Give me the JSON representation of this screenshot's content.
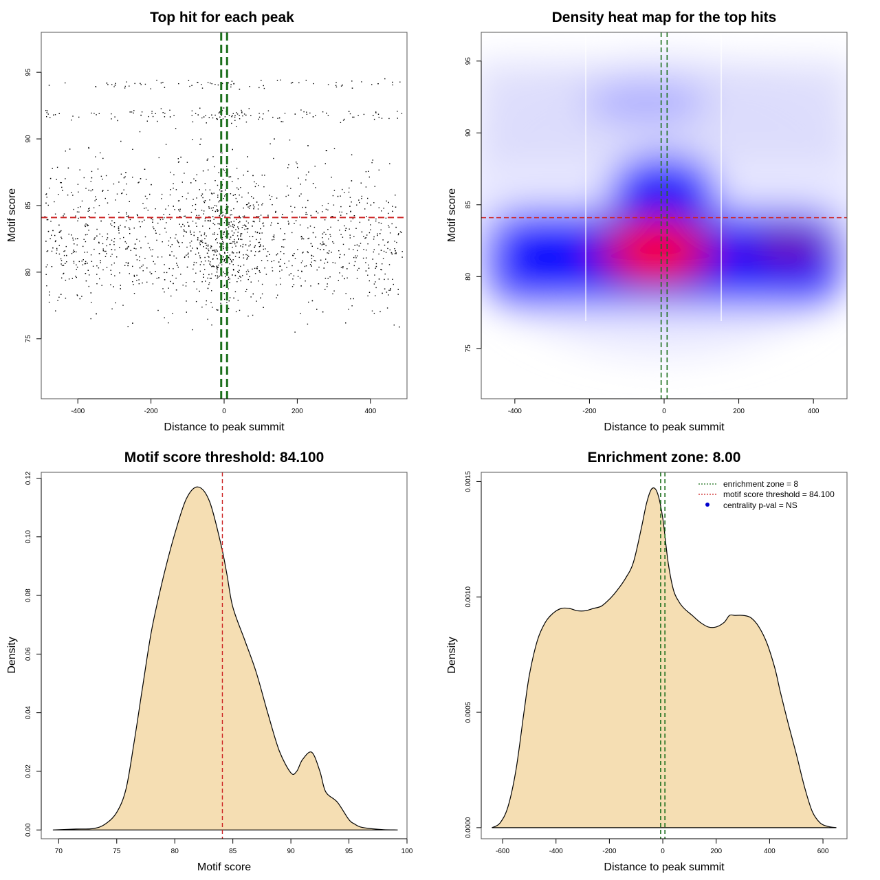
{
  "colors": {
    "threshold_red": "#cc2222",
    "zone_green": "#1a6e1a",
    "density_fill": "#f5deb3",
    "heat_low": "#ffffff",
    "heat_mid": "#0000ff",
    "heat_high": "#ff0000",
    "legend_dot": "#0000cc"
  },
  "chart_data": [
    {
      "type": "scatter",
      "title": "Top hit for each peak",
      "xlabel": "Distance to peak summit",
      "ylabel": "Motif score",
      "xlim": [
        -500,
        500
      ],
      "ylim": [
        70.5,
        98
      ],
      "xticks": [
        -400,
        -200,
        0,
        200,
        400
      ],
      "yticks": [
        75,
        80,
        85,
        90,
        95
      ],
      "hline": 84.1,
      "vlines": [
        -8,
        8
      ],
      "point_count": 2000,
      "points_description": "dense cloud between 76 and 90, sparse above 90 and below 76; x spread uniformly from -490 to 490"
    },
    {
      "type": "heatmap",
      "title": "Density heat map for the top hits",
      "xlabel": "Distance to peak summit",
      "ylabel": "Motif score",
      "xlim": [
        -490,
        490
      ],
      "ylim": [
        71.5,
        97
      ],
      "xticks": [
        -400,
        -200,
        0,
        200,
        400
      ],
      "yticks": [
        75,
        80,
        85,
        90,
        95
      ],
      "hline": 84.1,
      "vlines": [
        -8,
        8
      ],
      "peak": {
        "x": -20,
        "y": 82
      },
      "vertical_white_lines": [
        -210,
        153
      ]
    },
    {
      "type": "area",
      "title": "Motif score threshold: 84.100",
      "xlabel": "Motif score",
      "ylabel": "Density",
      "xlim": [
        68.5,
        100
      ],
      "ylim": [
        -0.003,
        0.122
      ],
      "xticks": [
        70,
        75,
        80,
        85,
        90,
        95,
        100
      ],
      "yticks": [
        "0.00",
        "0.02",
        "0.04",
        "0.06",
        "0.08",
        "0.10",
        "0.12"
      ],
      "vline": 84.1,
      "x": [
        69.5,
        71.5,
        73,
        74,
        75,
        75.8,
        76.5,
        77.2,
        78,
        79,
        80,
        81,
        82,
        83,
        84,
        84.5,
        85,
        86,
        87,
        88,
        89,
        90,
        90.5,
        91,
        91.8,
        92.5,
        93,
        94,
        95,
        95.5,
        96,
        97,
        98,
        99.2
      ],
      "y": [
        0.0,
        0.0003,
        0.0005,
        0.002,
        0.006,
        0.014,
        0.03,
        0.048,
        0.068,
        0.086,
        0.101,
        0.113,
        0.117,
        0.112,
        0.097,
        0.087,
        0.076,
        0.065,
        0.054,
        0.04,
        0.027,
        0.0195,
        0.02,
        0.024,
        0.0265,
        0.02,
        0.013,
        0.0095,
        0.0035,
        0.002,
        0.001,
        0.0004,
        0.0001,
        0.0
      ]
    },
    {
      "type": "area",
      "title": "Enrichment zone: 8.00",
      "xlabel": "Distance to peak summit",
      "ylabel": "Density",
      "xlim": [
        -680,
        690
      ],
      "ylim": [
        -4.8e-05,
        0.00154
      ],
      "xticks": [
        -600,
        -400,
        -200,
        0,
        200,
        400,
        600
      ],
      "yticks": [
        "0.0000",
        "0.0005",
        "0.0010",
        "0.0015"
      ],
      "vlines": [
        -8,
        8
      ],
      "x": [
        -640,
        -610,
        -580,
        -550,
        -520,
        -500,
        -470,
        -440,
        -410,
        -380,
        -350,
        -320,
        -290,
        -260,
        -230,
        -200,
        -170,
        -140,
        -110,
        -80,
        -60,
        -40,
        -20,
        0,
        20,
        40,
        60,
        80,
        110,
        140,
        170,
        200,
        230,
        250,
        270,
        300,
        330,
        360,
        390,
        420,
        440,
        470,
        500,
        530,
        560,
        590,
        620,
        650
      ],
      "y": [
        0.0,
        2e-05,
        9e-05,
        0.00025,
        0.0005,
        0.00066,
        0.00081,
        0.00089,
        0.00093,
        0.00095,
        0.00095,
        0.00094,
        0.00094,
        0.00095,
        0.00096,
        0.00099,
        0.00103,
        0.00108,
        0.00115,
        0.0013,
        0.00141,
        0.00147,
        0.00145,
        0.00134,
        0.00115,
        0.00103,
        0.00098,
        0.00095,
        0.00092,
        0.00089,
        0.00087,
        0.00087,
        0.00089,
        0.00092,
        0.00092,
        0.00092,
        0.00091,
        0.00087,
        0.0008,
        0.00069,
        0.00059,
        0.00045,
        0.00032,
        0.00018,
        7e-05,
        2e-05,
        5e-06,
        0.0
      ]
    }
  ],
  "legend": {
    "items": [
      {
        "label": "enrichment zone = 8",
        "kind": "dotted-line",
        "color": "#1a6e1a"
      },
      {
        "label": "motif score threshold = 84.100",
        "kind": "dotted-line",
        "color": "#cc2222"
      },
      {
        "label": "centrality p-val = NS",
        "kind": "dot",
        "color": "#0000cc"
      }
    ]
  }
}
